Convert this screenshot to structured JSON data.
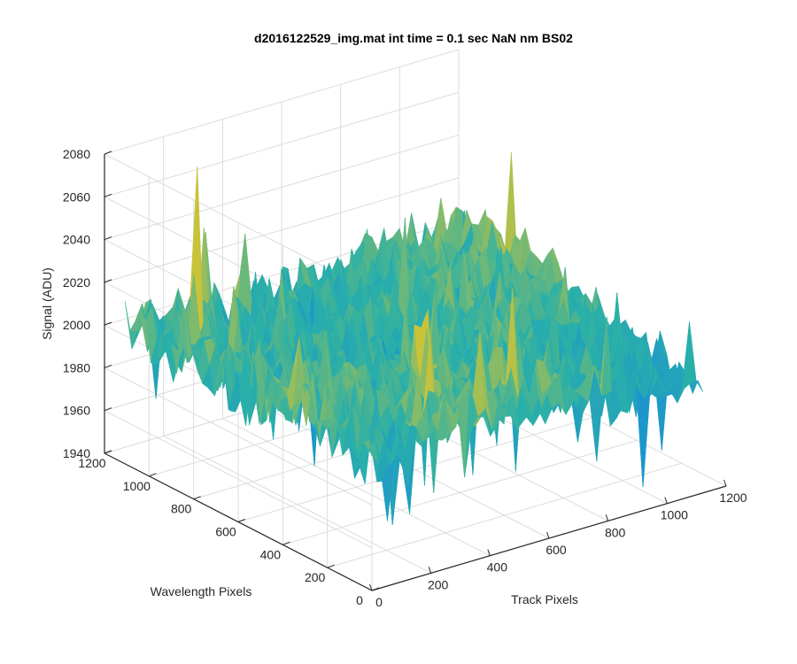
{
  "chart_data": {
    "type": "surface",
    "title": "d2016122529_img.mat int time = 0.1 sec  NaN nm BS02",
    "xlabel": "Track Pixels",
    "ylabel": "Wavelength Pixels",
    "zlabel": "Signal (ADU)",
    "xlim": [
      0,
      1200
    ],
    "ylim": [
      0,
      1200
    ],
    "zlim": [
      1940,
      2080
    ],
    "x_ticks": [
      "0",
      "200",
      "400",
      "600",
      "800",
      "1000",
      "1200"
    ],
    "y_ticks": [
      "0",
      "200",
      "400",
      "600",
      "800",
      "1000",
      "1200"
    ],
    "z_ticks": [
      "1940",
      "1960",
      "1980",
      "2000",
      "2020",
      "2040",
      "2060",
      "2080"
    ],
    "grid": true,
    "colormap": "parula",
    "surface_summary": {
      "baseline_signal": 1998,
      "noise_range": [
        1950,
        2050
      ],
      "peak": {
        "track": 160,
        "wavelength": 1000,
        "signal": 2078
      }
    }
  },
  "colors": {
    "axis": "#262626",
    "grid": "#dcdcdc",
    "surface_low": "#1a8fd6",
    "surface_mid": "#2ab0a8",
    "surface_high": "#c9c33a"
  }
}
